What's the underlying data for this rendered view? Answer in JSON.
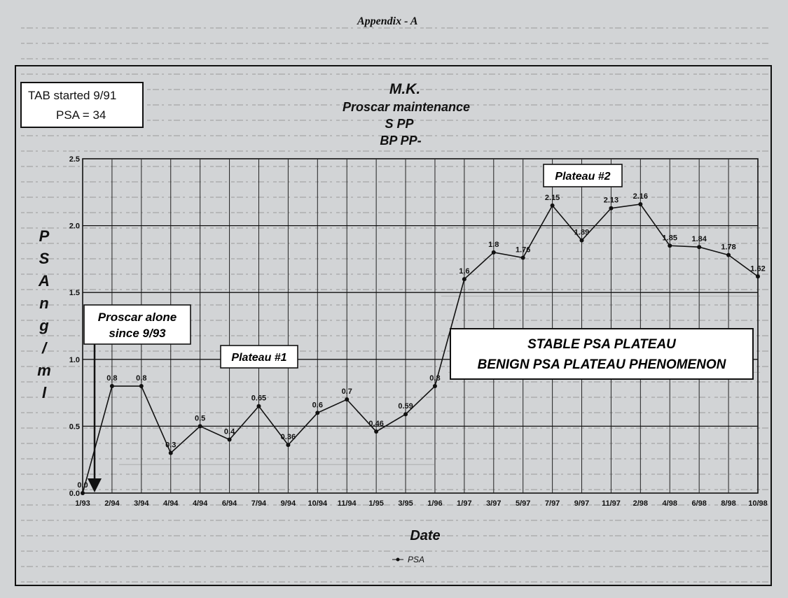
{
  "header": {
    "appendix": "Appendix - A"
  },
  "info_box": {
    "line1": "TAB started 9/91",
    "line2": "PSA = 34"
  },
  "title_block": {
    "line1": "M.K.",
    "line2": "Proscar maintenance",
    "line3": "S  PP",
    "line4": "BP  PP-"
  },
  "annotations": {
    "proscar_alone_line1": "Proscar alone",
    "proscar_alone_line2": "since 9/93",
    "plateau1": "Plateau #1",
    "plateau2": "Plateau #2",
    "stable_line1": "STABLE PSA PLATEAU",
    "stable_line2": "BENIGN PSA PLATEAU PHENOMENON"
  },
  "colors": {
    "page": "#d2d4d6",
    "ink": "#111111",
    "box_fill": "#ffffff"
  },
  "chart_data": {
    "type": "line",
    "xlabel": "Date",
    "ylabel": "PSA ng/ml",
    "ylim": [
      0,
      2.5
    ],
    "yticks": [
      "0.0",
      "0.5",
      "1.0",
      "1.5",
      "2.0",
      "2.5"
    ],
    "grid": true,
    "legend": "bottom-left",
    "categories": [
      "1/93",
      "2/94",
      "3/94",
      "4/94",
      "4/94",
      "6/94",
      "7/94",
      "9/94",
      "10/94",
      "11/94",
      "1/95",
      "3/95",
      "1/96",
      "1/97",
      "3/97",
      "5/97",
      "7/97",
      "9/97",
      "11/97",
      "2/98",
      "4/98",
      "6/98",
      "8/98",
      "10/98"
    ],
    "series": [
      {
        "name": "PSA",
        "values": [
          0,
          0.8,
          0.8,
          0.3,
          0.5,
          0.4,
          0.65,
          0.36,
          0.6,
          0.7,
          0.46,
          0.59,
          0.8,
          1.6,
          1.8,
          1.76,
          2.15,
          1.89,
          2.13,
          2.16,
          1.85,
          1.84,
          1.78,
          1.62
        ],
        "labels": [
          "0.0",
          "0.8",
          "0.8",
          "0.3",
          "0.5",
          "0.4",
          "0.65",
          "0.36",
          "0.6",
          "0.7",
          "0.46",
          "0.59",
          "0.8",
          "1.6",
          "1.8",
          "1.76",
          "2.15",
          "1.89",
          "2.13",
          "2.16",
          "1.85",
          "1.84",
          "1.78",
          "1.62"
        ]
      }
    ]
  }
}
